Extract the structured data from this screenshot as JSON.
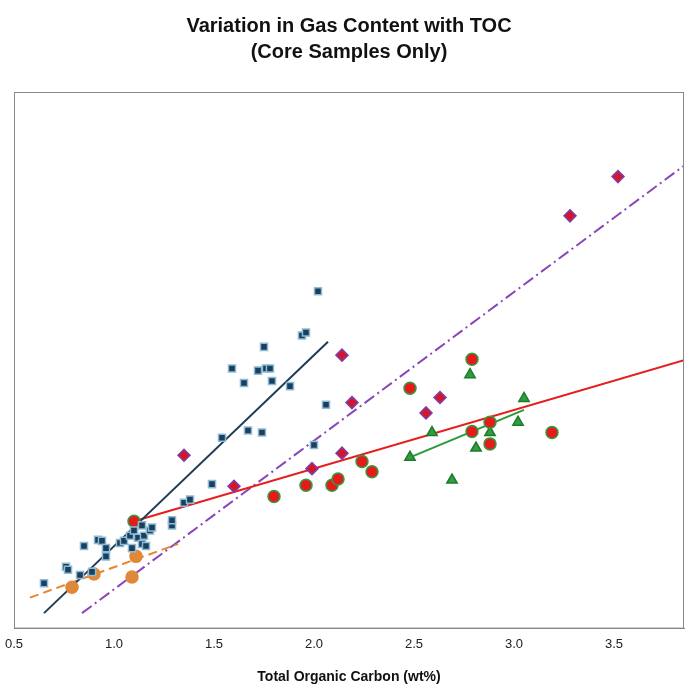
{
  "chart_data": {
    "type": "scatter",
    "title": "Variation in Gas Content with TOC",
    "subtitle": "(Core Samples Only)",
    "x_label": "Total Organic Carbon (wt%)",
    "xlim": [
      0.5,
      3.85
    ],
    "xticks": [
      {
        "value": 0.5,
        "label": "0.5"
      },
      {
        "value": 1,
        "label": "1.0"
      },
      {
        "value": 1.5,
        "label": "1.5"
      },
      {
        "value": 2,
        "label": "2.0"
      },
      {
        "value": 2.5,
        "label": "2.5"
      },
      {
        "value": 3,
        "label": "3.0"
      },
      3.5
    ],
    "ylim": [
      0,
      10.4
    ],
    "tick_labels": "x",
    "grid": false,
    "series": [
      {
        "type": "scatter",
        "marker": "square",
        "color": "#1b3f5e",
        "x": [
          0.65,
          0.76,
          0.77,
          0.83,
          0.85,
          0.89,
          0.92,
          0.94,
          0.96,
          0.96,
          1.03,
          1.05,
          1.08,
          1.09,
          1.1,
          1.12,
          1.14,
          1.14,
          1.15,
          1.16,
          1.18,
          1.19,
          1.29,
          1.29,
          1.35,
          1.38,
          1.49,
          1.54,
          1.59,
          1.65,
          1.67,
          1.72,
          1.74,
          1.75,
          1.76,
          1.78,
          1.79,
          1.88,
          1.94,
          1.96,
          2.0,
          2.02,
          2.06
        ],
        "values": [
          0.88,
          1.2,
          1.14,
          1.04,
          1.6,
          1.1,
          1.72,
          1.7,
          1.4,
          1.56,
          1.66,
          1.7,
          1.8,
          1.56,
          1.9,
          1.76,
          2.0,
          1.64,
          1.8,
          1.6,
          1.9,
          1.96,
          2.0,
          2.1,
          2.44,
          2.5,
          2.8,
          3.7,
          5.04,
          4.76,
          3.84,
          5.0,
          3.8,
          5.46,
          5.04,
          5.04,
          4.8,
          4.7,
          5.68,
          5.74,
          3.56,
          6.54,
          4.34
        ]
      },
      {
        "type": "line",
        "line_style": "solid",
        "color": "#1f3b57",
        "x": [
          0.65,
          2.07
        ],
        "values": [
          0.3,
          5.56
        ]
      },
      {
        "type": "scatter",
        "marker": "circle",
        "color": "#e0883a",
        "x": [
          0.79,
          0.9,
          1.09,
          1.11
        ],
        "values": [
          0.8,
          1.06,
          1.0,
          1.4
        ]
      },
      {
        "type": "line",
        "line_style": "dashed",
        "color": "#e8862a",
        "x": [
          0.58,
          1.32
        ],
        "values": [
          0.6,
          1.64
        ]
      },
      {
        "type": "scatter",
        "marker": "circle",
        "color": "#e8191b",
        "x": [
          1.1,
          1.8,
          1.96,
          2.09,
          2.12,
          2.24,
          2.29,
          2.48,
          2.79,
          2.79,
          2.88,
          2.88,
          3.19
        ],
        "values": [
          2.08,
          2.56,
          2.78,
          2.78,
          2.9,
          3.24,
          3.04,
          4.66,
          5.22,
          3.82,
          4.0,
          3.58,
          3.8
        ]
      },
      {
        "type": "line",
        "line_style": "solid",
        "color": "#e61e1e",
        "x": [
          1.1,
          3.85
        ],
        "values": [
          2.08,
          5.2
        ]
      },
      {
        "type": "scatter",
        "marker": "triangle",
        "color": "#2e9e3e",
        "x": [
          2.48,
          2.59,
          2.69,
          2.78,
          2.81,
          2.88,
          3.02,
          3.05
        ],
        "values": [
          3.32,
          3.8,
          2.88,
          4.92,
          3.5,
          3.8,
          4.0,
          4.46
        ]
      },
      {
        "type": "line",
        "line_style": "solid",
        "color": "#2a9a3a",
        "x": [
          2.48,
          3.05
        ],
        "values": [
          3.32,
          4.24
        ]
      },
      {
        "type": "scatter",
        "marker": "diamond",
        "color": "#d6152a",
        "x": [
          1.35,
          1.6,
          1.99,
          2.14,
          2.14,
          2.19,
          2.56,
          2.63,
          3.28,
          3.52
        ],
        "values": [
          3.36,
          2.76,
          3.1,
          3.4,
          5.3,
          4.38,
          4.18,
          4.48,
          8.0,
          8.76
        ]
      },
      {
        "type": "line",
        "line_style": "dashdot",
        "color": "#8a45b8",
        "x": [
          0.84,
          3.86
        ],
        "values": [
          0.3,
          9.0
        ]
      }
    ]
  }
}
